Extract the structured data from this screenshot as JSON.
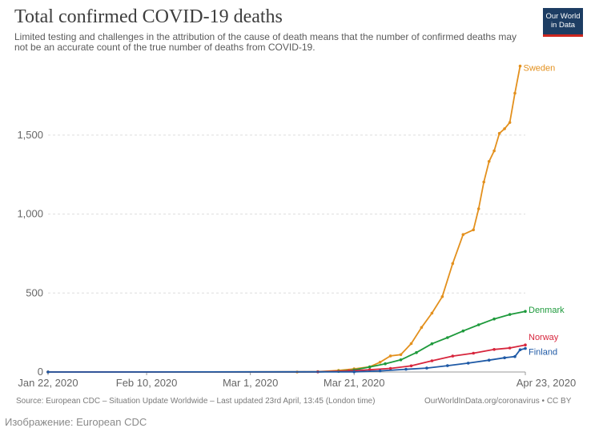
{
  "header": {
    "title": "Total confirmed COVID-19 deaths",
    "subtitle": "Limited testing and challenges in the attribution of the cause of death means that the number of confirmed deaths may not be an accurate count of the true number of deaths from COVID-19.",
    "logo_line1": "Our World",
    "logo_line2": "in Data"
  },
  "footer": {
    "source": "Source: European CDC – Situation Update Worldwide – Last updated 23rd April, 13:45 (London time)",
    "license": "OurWorldInData.org/coronavirus • CC BY"
  },
  "caption": "Изображение: European CDC",
  "colors": {
    "Sweden": "#e3901d",
    "Denmark": "#1e9a3c",
    "Norway": "#d7263d",
    "Finland": "#1f5aa6"
  },
  "chart_data": {
    "type": "line",
    "title": "Total confirmed COVID-19 deaths",
    "xlabel": "",
    "ylabel": "",
    "ylim": [
      0,
      1950
    ],
    "yticks": [
      0,
      500,
      1000,
      1500
    ],
    "ytick_labels": [
      "0",
      "500",
      "1,000",
      "1,500"
    ],
    "xticks": [
      "2020-01-22",
      "2020-02-10",
      "2020-03-01",
      "2020-03-21",
      "2020-04-23"
    ],
    "xtick_labels": [
      "Jan 22, 2020",
      "Feb 10, 2020",
      "Mar 1, 2020",
      "Mar 21, 2020",
      "Apr 23, 2020"
    ],
    "xrange": [
      "2020-01-22",
      "2020-04-23"
    ],
    "grid": "horizontal dashed",
    "legend": "labels at line ends",
    "series": [
      {
        "name": "Sweden",
        "points": [
          [
            "2020-01-22",
            0
          ],
          [
            "2020-03-10",
            0
          ],
          [
            "2020-03-14",
            2
          ],
          [
            "2020-03-18",
            10
          ],
          [
            "2020-03-21",
            20
          ],
          [
            "2020-03-24",
            33
          ],
          [
            "2020-03-26",
            62
          ],
          [
            "2020-03-28",
            102
          ],
          [
            "2020-03-30",
            110
          ],
          [
            "2020-04-01",
            180
          ],
          [
            "2020-04-03",
            282
          ],
          [
            "2020-04-05",
            373
          ],
          [
            "2020-04-07",
            477
          ],
          [
            "2020-04-09",
            687
          ],
          [
            "2020-04-11",
            870
          ],
          [
            "2020-04-13",
            900
          ],
          [
            "2020-04-14",
            1033
          ],
          [
            "2020-04-15",
            1203
          ],
          [
            "2020-04-16",
            1333
          ],
          [
            "2020-04-17",
            1400
          ],
          [
            "2020-04-18",
            1511
          ],
          [
            "2020-04-19",
            1540
          ],
          [
            "2020-04-20",
            1580
          ],
          [
            "2020-04-21",
            1765
          ],
          [
            "2020-04-22",
            1937
          ]
        ]
      },
      {
        "name": "Denmark",
        "points": [
          [
            "2020-01-22",
            0
          ],
          [
            "2020-03-14",
            1
          ],
          [
            "2020-03-18",
            4
          ],
          [
            "2020-03-21",
            13
          ],
          [
            "2020-03-24",
            32
          ],
          [
            "2020-03-27",
            52
          ],
          [
            "2020-03-30",
            77
          ],
          [
            "2020-04-02",
            123
          ],
          [
            "2020-04-05",
            179
          ],
          [
            "2020-04-08",
            218
          ],
          [
            "2020-04-11",
            260
          ],
          [
            "2020-04-14",
            299
          ],
          [
            "2020-04-17",
            336
          ],
          [
            "2020-04-20",
            364
          ],
          [
            "2020-04-23",
            384
          ]
        ]
      },
      {
        "name": "Norway",
        "points": [
          [
            "2020-01-22",
            0
          ],
          [
            "2020-03-14",
            1
          ],
          [
            "2020-03-20",
            7
          ],
          [
            "2020-03-24",
            14
          ],
          [
            "2020-03-28",
            23
          ],
          [
            "2020-04-01",
            39
          ],
          [
            "2020-04-05",
            71
          ],
          [
            "2020-04-09",
            101
          ],
          [
            "2020-04-13",
            119
          ],
          [
            "2020-04-17",
            143
          ],
          [
            "2020-04-20",
            152
          ],
          [
            "2020-04-23",
            171
          ]
        ]
      },
      {
        "name": "Finland",
        "points": [
          [
            "2020-01-22",
            0
          ],
          [
            "2020-03-21",
            1
          ],
          [
            "2020-03-26",
            7
          ],
          [
            "2020-03-31",
            17
          ],
          [
            "2020-04-04",
            25
          ],
          [
            "2020-04-08",
            40
          ],
          [
            "2020-04-12",
            56
          ],
          [
            "2020-04-16",
            75
          ],
          [
            "2020-04-19",
            90
          ],
          [
            "2020-04-21",
            98
          ],
          [
            "2020-04-22",
            141
          ],
          [
            "2020-04-23",
            149
          ]
        ]
      }
    ]
  }
}
